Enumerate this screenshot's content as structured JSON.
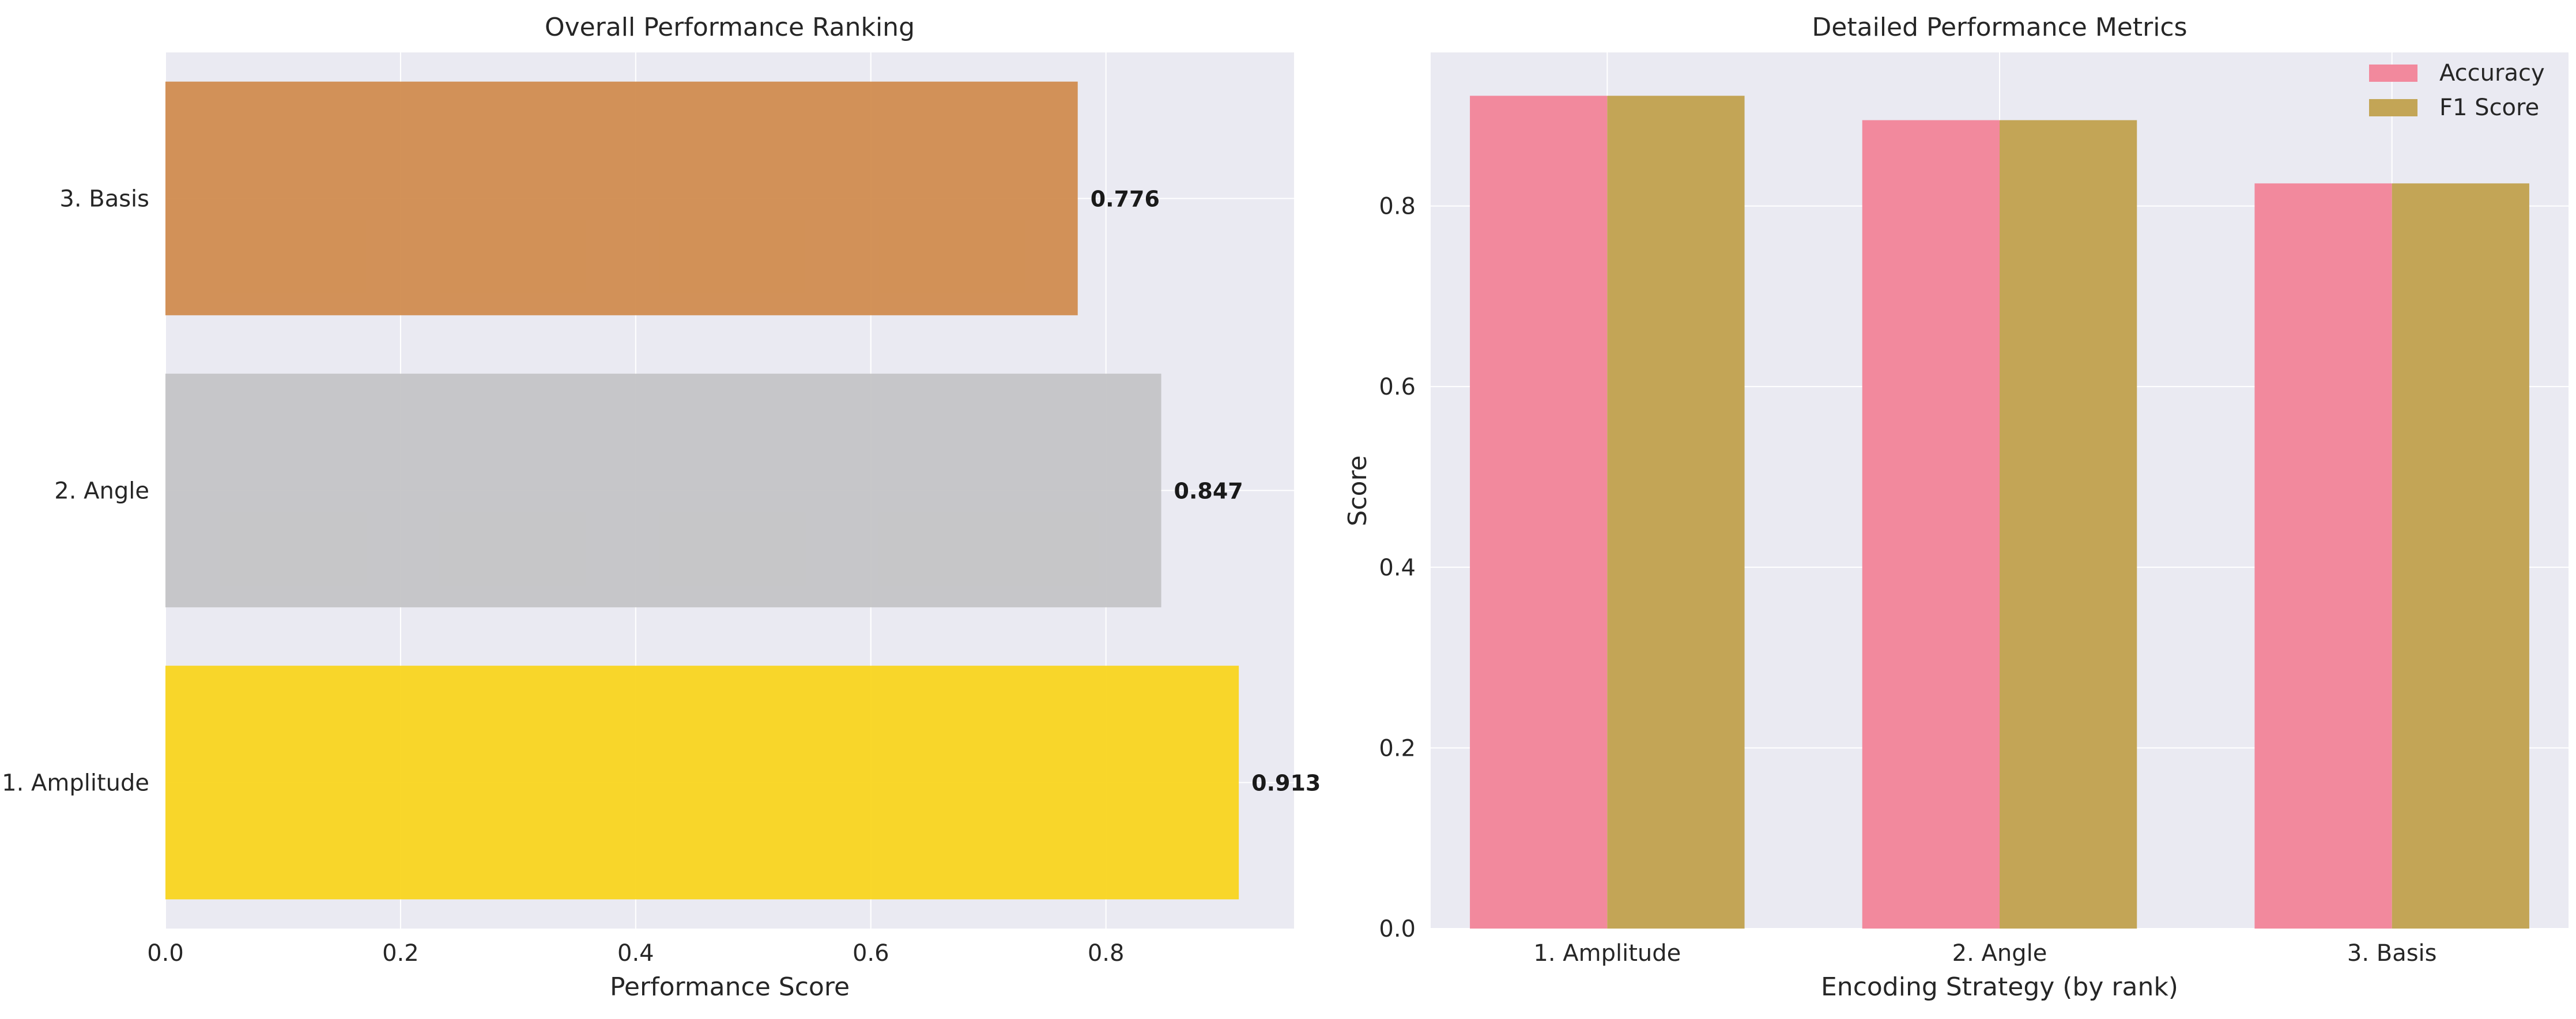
{
  "chart_data": [
    {
      "type": "bar",
      "orientation": "horizontal",
      "title": "Overall Performance Ranking",
      "xlabel": "Performance Score",
      "ylabel": "",
      "categories": [
        "1. Amplitude",
        "2. Angle",
        "3. Basis"
      ],
      "values": [
        0.913,
        0.847,
        0.776
      ],
      "value_labels": [
        "0.913",
        "0.847",
        "0.776"
      ],
      "bar_colors": [
        "#f9d51f",
        "#c4c4c6",
        "#d18c4f"
      ],
      "xlim": [
        0,
        0.96
      ],
      "xticks": [
        0.0,
        0.2,
        0.4,
        0.6,
        0.8
      ],
      "xtick_labels": [
        "0.0",
        "0.2",
        "0.4",
        "0.6",
        "0.8"
      ],
      "grid": true
    },
    {
      "type": "bar",
      "title": "Detailed Performance Metrics",
      "xlabel": "Encoding Strategy (by rank)",
      "ylabel": "Score",
      "categories": [
        "1. Amplitude",
        "2. Angle",
        "3. Basis"
      ],
      "series": [
        {
          "name": "Accuracy",
          "values": [
            0.922,
            0.895,
            0.825
          ],
          "color": "#f2899d"
        },
        {
          "name": "F1 Score",
          "values": [
            0.922,
            0.895,
            0.825
          ],
          "color": "#c3a556"
        }
      ],
      "ylim": [
        0,
        0.97
      ],
      "yticks": [
        0.0,
        0.2,
        0.4,
        0.6,
        0.8
      ],
      "ytick_labels": [
        "0.0",
        "0.2",
        "0.4",
        "0.6",
        "0.8"
      ],
      "legend": "top-right",
      "grid": true
    }
  ]
}
